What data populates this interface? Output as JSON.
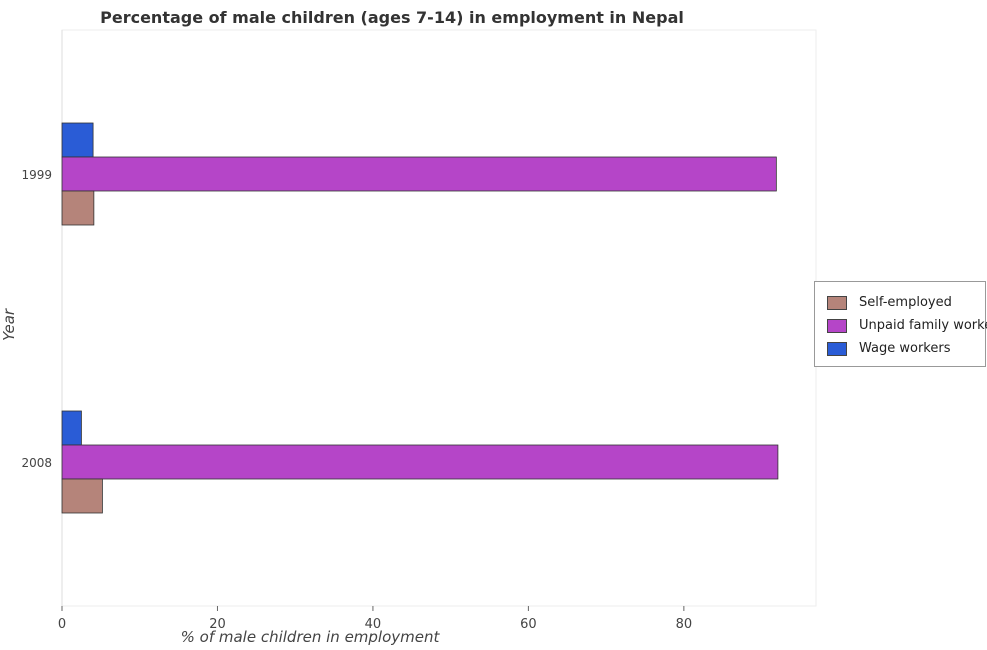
{
  "chart_data": {
    "type": "bar",
    "orientation": "horizontal",
    "title": "Percentage of male children (ages 7-14) in employment in Nepal",
    "xlabel": "% of male children in employment",
    "ylabel": "Year",
    "categories": [
      "1999",
      "2008"
    ],
    "series": [
      {
        "name": "Self-employed",
        "values": [
          4.1,
          5.2
        ],
        "color": "#b5847a"
      },
      {
        "name": "Unpaid family workers",
        "values": [
          91.9,
          92.1
        ],
        "color": "#b545c8"
      },
      {
        "name": "Wage workers",
        "values": [
          4.0,
          2.5
        ],
        "color": "#2a5cd6"
      }
    ],
    "xlim": [
      0,
      97
    ],
    "xticks": [
      0,
      20,
      40,
      60,
      80
    ],
    "grid": false,
    "legend_position": "right"
  }
}
